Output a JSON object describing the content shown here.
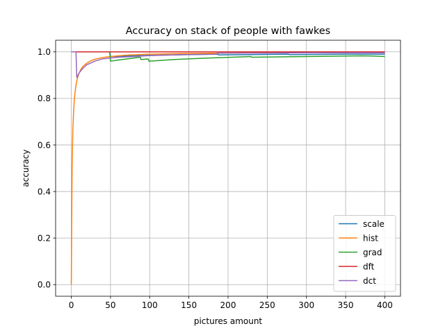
{
  "chart_data": {
    "type": "line",
    "title": "Accuracy on stack of people with fawkes",
    "xlabel": "pictures amount",
    "ylabel": "accuracy",
    "xlim": [
      -20,
      420
    ],
    "ylim": [
      -0.05,
      1.05
    ],
    "xticks": [
      0,
      50,
      100,
      150,
      200,
      250,
      300,
      350,
      400
    ],
    "yticks": [
      0.0,
      0.2,
      0.4,
      0.6,
      0.8,
      1.0
    ],
    "xtick_labels": [
      "0",
      "50",
      "100",
      "150",
      "200",
      "250",
      "300",
      "350",
      "400"
    ],
    "ytick_labels": [
      "0.0",
      "0.2",
      "0.4",
      "0.6",
      "0.8",
      "1.0"
    ],
    "grid": true,
    "legend_position": "lower-right",
    "series": [
      {
        "name": "scale",
        "color": "#1f77b4",
        "points": [
          [
            0,
            1.0
          ],
          [
            49,
            1.0
          ],
          [
            50,
            0.98
          ],
          [
            100,
            0.985
          ],
          [
            150,
            0.988
          ],
          [
            187,
            0.99
          ],
          [
            188,
            0.987
          ],
          [
            277,
            0.99
          ],
          [
            278,
            0.988
          ],
          [
            350,
            0.99
          ],
          [
            400,
            0.99
          ]
        ]
      },
      {
        "name": "hist",
        "color": "#ff7f0e",
        "points": [
          [
            0,
            0.0
          ],
          [
            1,
            0.5
          ],
          [
            2,
            0.67
          ],
          [
            3,
            0.75
          ],
          [
            4,
            0.8
          ],
          [
            5,
            0.833
          ],
          [
            6,
            0.857
          ],
          [
            7,
            0.875
          ],
          [
            8,
            0.889
          ],
          [
            10,
            0.909
          ],
          [
            12,
            0.923
          ],
          [
            15,
            0.938
          ],
          [
            20,
            0.952
          ],
          [
            25,
            0.962
          ],
          [
            30,
            0.968
          ],
          [
            40,
            0.976
          ],
          [
            50,
            0.98
          ],
          [
            70,
            0.986
          ],
          [
            100,
            0.99
          ],
          [
            150,
            0.993
          ],
          [
            200,
            0.995
          ],
          [
            300,
            0.997
          ],
          [
            400,
            0.997
          ]
        ]
      },
      {
        "name": "grad",
        "color": "#2ca02c",
        "points": [
          [
            0,
            1.0
          ],
          [
            49,
            1.0
          ],
          [
            50,
            0.96
          ],
          [
            60,
            0.965
          ],
          [
            88,
            0.977
          ],
          [
            89,
            0.967
          ],
          [
            98,
            0.97
          ],
          [
            99,
            0.96
          ],
          [
            130,
            0.967
          ],
          [
            170,
            0.973
          ],
          [
            229,
            0.98
          ],
          [
            230,
            0.977
          ],
          [
            300,
            0.98
          ],
          [
            350,
            0.982
          ],
          [
            370,
            0.983
          ],
          [
            385,
            0.982
          ],
          [
            400,
            0.98
          ]
        ]
      },
      {
        "name": "dft",
        "color": "#d62728",
        "points": [
          [
            0,
            1.0
          ],
          [
            400,
            1.0
          ]
        ]
      },
      {
        "name": "dct",
        "color": "#9467bd",
        "points": [
          [
            0,
            1.0
          ],
          [
            6,
            1.0
          ],
          [
            7,
            0.89
          ],
          [
            10,
            0.91
          ],
          [
            15,
            0.93
          ],
          [
            20,
            0.945
          ],
          [
            30,
            0.96
          ],
          [
            40,
            0.97
          ],
          [
            60,
            0.977
          ],
          [
            80,
            0.98
          ],
          [
            100,
            0.984
          ],
          [
            140,
            0.988
          ],
          [
            186,
            0.99
          ],
          [
            187,
            1.0
          ],
          [
            188,
            0.995
          ],
          [
            250,
            0.995
          ],
          [
            300,
            0.996
          ],
          [
            400,
            0.996
          ]
        ]
      }
    ]
  }
}
